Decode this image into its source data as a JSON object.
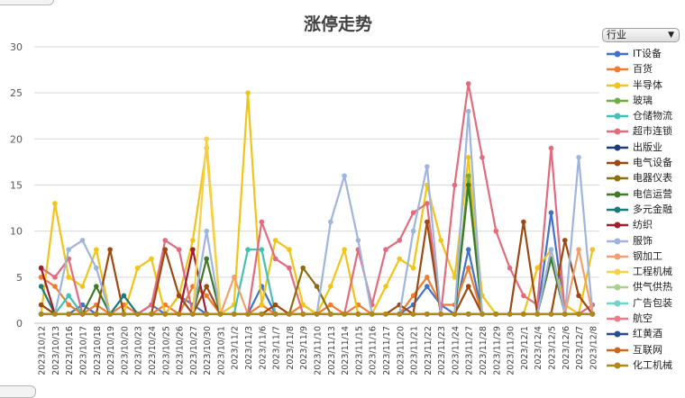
{
  "top_left_button": "",
  "bottom_left_button": "",
  "filter": {
    "value": "行业"
  },
  "chart_data": {
    "type": "line",
    "title": "涨停走势",
    "xlabel": "",
    "ylabel": "",
    "ylim": [
      0,
      30
    ],
    "yticks": [
      0,
      5,
      10,
      15,
      20,
      25,
      30
    ],
    "grid": "horizontal",
    "legend_position": "right",
    "categories": [
      "2023/10/12",
      "2023/10/13",
      "2023/10/16",
      "2023/10/17",
      "2023/10/18",
      "2023/10/19",
      "2023/10/20",
      "2023/10/23",
      "2023/10/24",
      "2023/10/25",
      "2023/10/26",
      "2023/10/27",
      "2023/10/30",
      "2023/10/31",
      "2023/11/2",
      "2023/11/3",
      "2023/11/6",
      "2023/11/7",
      "2023/11/8",
      "2023/11/9",
      "2023/11/10",
      "2023/11/13",
      "2023/11/14",
      "2023/11/15",
      "2023/11/16",
      "2023/11/17",
      "2023/11/20",
      "2023/11/21",
      "2023/11/22",
      "2023/11/23",
      "2023/11/24",
      "2023/11/27",
      "2023/11/28",
      "2023/11/29",
      "2023/11/30",
      "2023/12/1",
      "2023/12/4",
      "2023/12/5",
      "2023/12/6",
      "2023/12/7",
      "2023/12/8"
    ],
    "series": [
      {
        "name": "IT设备",
        "color": "#4472c4",
        "values": [
          1,
          1,
          1,
          2,
          1,
          1,
          1,
          1,
          2,
          1,
          3,
          2,
          1,
          1,
          1,
          1,
          4,
          1,
          1,
          1,
          1,
          1,
          1,
          1,
          1,
          1,
          1,
          2,
          4,
          2,
          1,
          8,
          1,
          1,
          1,
          1,
          1,
          12,
          1,
          1,
          1
        ]
      },
      {
        "name": "百货",
        "color": "#ed7d31",
        "values": [
          5,
          4,
          2,
          1,
          2,
          1,
          2,
          1,
          1,
          2,
          1,
          4,
          3,
          1,
          1,
          1,
          2,
          1,
          1,
          2,
          1,
          2,
          1,
          2,
          1,
          1,
          1,
          3,
          5,
          2,
          2,
          6,
          1,
          1,
          1,
          1,
          1,
          1,
          1,
          1,
          1
        ]
      },
      {
        "name": "半导体",
        "color": "#f0c419",
        "values": [
          1,
          13,
          5,
          4,
          8,
          1,
          1,
          6,
          7,
          1,
          3,
          9,
          19,
          1,
          2,
          25,
          2,
          9,
          8,
          2,
          1,
          4,
          8,
          1,
          1,
          4,
          7,
          6,
          15,
          9,
          5,
          18,
          3,
          1,
          1,
          1,
          6,
          8,
          2,
          1,
          8
        ]
      },
      {
        "name": "玻璃",
        "color": "#70ad47",
        "values": [
          2,
          1,
          1,
          1,
          1,
          1,
          1,
          1,
          1,
          1,
          1,
          1,
          1,
          1,
          1,
          1,
          1,
          1,
          1,
          1,
          1,
          1,
          1,
          1,
          1,
          1,
          1,
          1,
          1,
          1,
          1,
          16,
          1,
          1,
          1,
          1,
          1,
          1,
          1,
          1,
          1
        ]
      },
      {
        "name": "仓储物流",
        "color": "#44c1b2",
        "values": [
          1,
          1,
          3,
          1,
          1,
          1,
          1,
          1,
          1,
          1,
          1,
          1,
          1,
          1,
          1,
          8,
          8,
          1,
          1,
          1,
          1,
          1,
          1,
          1,
          1,
          1,
          1,
          1,
          1,
          1,
          1,
          1,
          1,
          1,
          1,
          1,
          1,
          1,
          1,
          1,
          1
        ]
      },
      {
        "name": "超市连锁",
        "color": "#e06c7e",
        "values": [
          6,
          5,
          7,
          1,
          1,
          1,
          1,
          1,
          2,
          9,
          8,
          1,
          1,
          1,
          1,
          1,
          11,
          7,
          6,
          1,
          1,
          1,
          1,
          8,
          2,
          8,
          9,
          12,
          13,
          1,
          15,
          26,
          18,
          10,
          6,
          3,
          2,
          19,
          1,
          1,
          2
        ]
      },
      {
        "name": "出版业",
        "color": "#1f3c7a",
        "values": [
          1,
          1,
          1,
          1,
          1,
          1,
          1,
          1,
          1,
          1,
          1,
          1,
          1,
          1,
          1,
          1,
          1,
          1,
          1,
          1,
          1,
          1,
          1,
          1,
          1,
          1,
          1,
          1,
          1,
          1,
          1,
          1,
          1,
          1,
          1,
          1,
          1,
          1,
          1,
          1,
          1
        ]
      },
      {
        "name": "电气设备",
        "color": "#9c4a12",
        "values": [
          2,
          1,
          1,
          1,
          1,
          8,
          1,
          1,
          1,
          8,
          3,
          1,
          4,
          1,
          1,
          1,
          1,
          2,
          1,
          1,
          1,
          1,
          1,
          1,
          1,
          1,
          2,
          1,
          11,
          1,
          1,
          4,
          1,
          1,
          1,
          11,
          1,
          1,
          9,
          3,
          1
        ]
      },
      {
        "name": "电器仪表",
        "color": "#8c6d10",
        "values": [
          1,
          1,
          1,
          1,
          1,
          1,
          1,
          1,
          1,
          1,
          1,
          1,
          1,
          1,
          1,
          1,
          1,
          1,
          1,
          6,
          4,
          1,
          1,
          1,
          1,
          1,
          1,
          1,
          1,
          1,
          1,
          1,
          1,
          1,
          1,
          1,
          1,
          1,
          1,
          1,
          1
        ]
      },
      {
        "name": "电信运营",
        "color": "#3e7a2a",
        "values": [
          1,
          1,
          1,
          1,
          4,
          1,
          1,
          1,
          1,
          1,
          1,
          1,
          7,
          1,
          1,
          1,
          1,
          1,
          1,
          1,
          1,
          1,
          1,
          1,
          1,
          1,
          1,
          1,
          1,
          1,
          1,
          15,
          1,
          1,
          1,
          1,
          1,
          7,
          1,
          1,
          1
        ]
      },
      {
        "name": "多元金融",
        "color": "#1b7a7a",
        "values": [
          4,
          1,
          1,
          1,
          1,
          1,
          3,
          1,
          1,
          1,
          1,
          1,
          1,
          1,
          1,
          1,
          1,
          1,
          1,
          1,
          1,
          1,
          1,
          1,
          1,
          1,
          1,
          1,
          1,
          1,
          1,
          1,
          1,
          1,
          1,
          1,
          1,
          1,
          1,
          1,
          1
        ]
      },
      {
        "name": "纺织",
        "color": "#a01f2f",
        "values": [
          6,
          1,
          1,
          1,
          1,
          1,
          1,
          1,
          1,
          1,
          1,
          8,
          1,
          1,
          1,
          1,
          1,
          1,
          1,
          1,
          1,
          1,
          1,
          1,
          1,
          1,
          1,
          1,
          1,
          1,
          1,
          1,
          1,
          1,
          1,
          1,
          1,
          1,
          1,
          1,
          1
        ]
      },
      {
        "name": "服饰",
        "color": "#9fb5dc",
        "values": [
          1,
          1,
          8,
          9,
          6,
          1,
          1,
          1,
          1,
          1,
          1,
          1,
          10,
          1,
          1,
          1,
          1,
          1,
          1,
          1,
          1,
          11,
          16,
          9,
          1,
          1,
          1,
          10,
          17,
          1,
          1,
          23,
          1,
          1,
          1,
          1,
          1,
          8,
          1,
          18,
          1
        ]
      },
      {
        "name": "钢加工",
        "color": "#f0a070",
        "values": [
          1,
          1,
          1,
          1,
          1,
          1,
          1,
          1,
          1,
          1,
          1,
          1,
          1,
          1,
          5,
          1,
          1,
          1,
          1,
          1,
          1,
          1,
          1,
          1,
          1,
          1,
          1,
          1,
          1,
          1,
          1,
          1,
          1,
          1,
          1,
          1,
          1,
          1,
          1,
          8,
          1
        ]
      },
      {
        "name": "工程机械",
        "color": "#f7d04a",
        "values": [
          1,
          1,
          1,
          1,
          1,
          1,
          1,
          1,
          1,
          1,
          1,
          1,
          20,
          1,
          1,
          1,
          1,
          1,
          1,
          1,
          1,
          1,
          1,
          1,
          1,
          1,
          1,
          1,
          1,
          1,
          1,
          1,
          1,
          1,
          1,
          1,
          1,
          1,
          1,
          1,
          1
        ]
      },
      {
        "name": "供气供热",
        "color": "#a9d18e",
        "values": [
          1,
          1,
          1,
          1,
          1,
          1,
          1,
          1,
          1,
          1,
          1,
          1,
          1,
          1,
          1,
          1,
          1,
          1,
          1,
          1,
          1,
          1,
          1,
          1,
          1,
          1,
          1,
          1,
          1,
          1,
          1,
          1,
          1,
          1,
          1,
          1,
          1,
          1,
          1,
          1,
          1
        ]
      },
      {
        "name": "广告包装",
        "color": "#6fd3c8",
        "values": [
          1,
          1,
          1,
          1,
          1,
          1,
          1,
          1,
          1,
          1,
          1,
          1,
          1,
          1,
          1,
          1,
          1,
          1,
          1,
          1,
          1,
          1,
          1,
          1,
          1,
          1,
          1,
          1,
          1,
          1,
          1,
          1,
          1,
          1,
          1,
          1,
          1,
          1,
          1,
          1,
          1
        ]
      },
      {
        "name": "航空",
        "color": "#ee7a8a",
        "values": [
          1,
          1,
          1,
          1,
          1,
          1,
          1,
          1,
          1,
          1,
          1,
          1,
          1,
          1,
          1,
          1,
          1,
          1,
          1,
          1,
          1,
          1,
          1,
          1,
          1,
          1,
          1,
          1,
          1,
          1,
          1,
          1,
          1,
          1,
          1,
          1,
          1,
          1,
          1,
          1,
          1
        ]
      },
      {
        "name": "红黄酒",
        "color": "#2a4c8c",
        "values": [
          1,
          1,
          1,
          1,
          1,
          1,
          1,
          1,
          1,
          1,
          1,
          1,
          1,
          1,
          1,
          1,
          1,
          1,
          1,
          1,
          1,
          1,
          1,
          1,
          1,
          1,
          1,
          1,
          1,
          1,
          1,
          1,
          1,
          1,
          1,
          1,
          1,
          1,
          1,
          1,
          1
        ]
      },
      {
        "name": "互联网",
        "color": "#c9661f",
        "values": [
          1,
          1,
          1,
          1,
          1,
          1,
          1,
          1,
          1,
          1,
          1,
          1,
          1,
          1,
          1,
          1,
          1,
          1,
          1,
          1,
          1,
          1,
          1,
          1,
          1,
          1,
          1,
          1,
          1,
          1,
          1,
          1,
          1,
          1,
          1,
          1,
          1,
          1,
          1,
          1,
          1
        ]
      },
      {
        "name": "化工机械",
        "color": "#b08a18",
        "values": [
          1,
          1,
          1,
          1,
          1,
          1,
          1,
          1,
          1,
          1,
          1,
          1,
          1,
          1,
          1,
          1,
          1,
          1,
          1,
          1,
          1,
          1,
          1,
          1,
          1,
          1,
          1,
          1,
          1,
          1,
          1,
          1,
          1,
          1,
          1,
          1,
          1,
          1,
          1,
          1,
          1
        ]
      }
    ]
  }
}
